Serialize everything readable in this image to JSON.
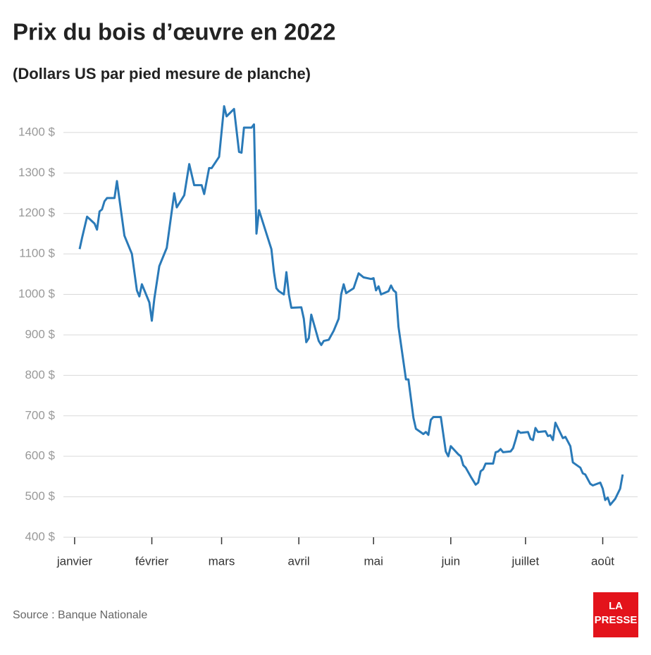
{
  "chart_data": {
    "type": "line",
    "title": "Prix du bois d’œuvre en 2022",
    "subtitle": "(Dollars US par pied mesure de planche)",
    "color": "#2a7ab8",
    "grid": true,
    "xlim": [
      -4.5,
      226
    ],
    "ylim": [
      400,
      1480
    ],
    "yticks": [
      {
        "value": 400,
        "label": "400 $"
      },
      {
        "value": 500,
        "label": "500 $"
      },
      {
        "value": 600,
        "label": "600 $"
      },
      {
        "value": 700,
        "label": "700 $"
      },
      {
        "value": 800,
        "label": "800 $"
      },
      {
        "value": 900,
        "label": "900 $"
      },
      {
        "value": 1000,
        "label": "1000 $"
      },
      {
        "value": 1100,
        "label": "1100 $"
      },
      {
        "value": 1200,
        "label": "1200 $"
      },
      {
        "value": 1300,
        "label": "1300 $"
      },
      {
        "value": 1400,
        "label": "1400 $"
      }
    ],
    "xticks": [
      {
        "value": 0,
        "label": "janvier"
      },
      {
        "value": 31,
        "label": "février"
      },
      {
        "value": 59,
        "label": "mars"
      },
      {
        "value": 90,
        "label": "avril"
      },
      {
        "value": 120,
        "label": "mai"
      },
      {
        "value": 151,
        "label": "juin"
      },
      {
        "value": 181,
        "label": "juillet"
      },
      {
        "value": 212,
        "label": "août"
      }
    ],
    "x": [
      2,
      3,
      5,
      8,
      9,
      10,
      11,
      12,
      13,
      16,
      17,
      20,
      23,
      25,
      26,
      27,
      30,
      31,
      32,
      34,
      37,
      40,
      41,
      44,
      46,
      48,
      51,
      52,
      54,
      55,
      58,
      60,
      61,
      64,
      66,
      67,
      68,
      71,
      72,
      73,
      74,
      79,
      80,
      81,
      82,
      84,
      85,
      86,
      87,
      91,
      92,
      93,
      94,
      95,
      98,
      99,
      100,
      102,
      104,
      106,
      107,
      108,
      109,
      112,
      114,
      116,
      119,
      120,
      121,
      122,
      123,
      126,
      127,
      128,
      129,
      130,
      133,
      134,
      136,
      137,
      140,
      141,
      142,
      143,
      144,
      147,
      149,
      150,
      151,
      154,
      155,
      156,
      157,
      159,
      161,
      162,
      163,
      164,
      165,
      168,
      169,
      170,
      171,
      172,
      175,
      176,
      177,
      178,
      179,
      182,
      183,
      184,
      185,
      186,
      189,
      190,
      191,
      192,
      193,
      196,
      197,
      199,
      200,
      203,
      204,
      205,
      207,
      208,
      211,
      212,
      213,
      214,
      215,
      217,
      219,
      220
    ],
    "values": [
      1112,
      1140,
      1192,
      1175,
      1160,
      1205,
      1210,
      1230,
      1238,
      1238,
      1280,
      1145,
      1100,
      1010,
      995,
      1025,
      980,
      935,
      990,
      1070,
      1115,
      1250,
      1215,
      1245,
      1322,
      1270,
      1270,
      1248,
      1312,
      1312,
      1340,
      1465,
      1440,
      1458,
      1352,
      1350,
      1412,
      1412,
      1420,
      1150,
      1208,
      1112,
      1055,
      1015,
      1008,
      1000,
      1055,
      1000,
      967,
      968,
      940,
      882,
      892,
      950,
      885,
      875,
      885,
      888,
      910,
      940,
      1000,
      1025,
      1003,
      1015,
      1052,
      1042,
      1038,
      1040,
      1010,
      1020,
      1000,
      1008,
      1022,
      1010,
      1005,
      920,
      790,
      790,
      695,
      668,
      655,
      660,
      653,
      690,
      697,
      697,
      612,
      600,
      625,
      605,
      600,
      578,
      572,
      550,
      530,
      535,
      563,
      568,
      582,
      582,
      610,
      612,
      618,
      610,
      612,
      620,
      640,
      663,
      658,
      660,
      643,
      640,
      670,
      660,
      662,
      650,
      652,
      640,
      683,
      645,
      648,
      625,
      585,
      572,
      558,
      555,
      532,
      528,
      535,
      520,
      492,
      498,
      480,
      495,
      520,
      555
    ]
  },
  "source": "Source : Banque Nationale",
  "logo": {
    "line1": "LA",
    "line2": "PRESSE"
  }
}
